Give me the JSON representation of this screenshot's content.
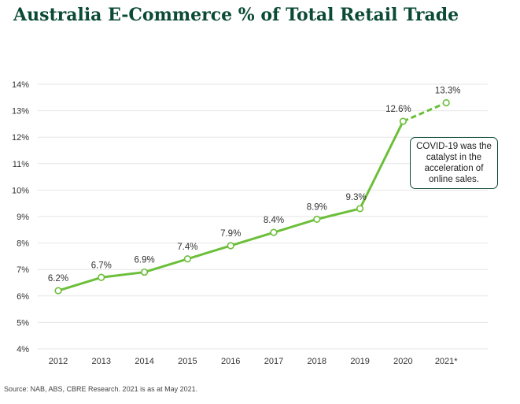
{
  "title": "Australia E-Commerce % of Total Retail Trade",
  "source": "Source: NAB, ABS, CBRE Research. 2021 is as at May 2021.",
  "callout": {
    "lines": [
      "COVID-19 was the",
      "catalyst in the",
      "acceleration of",
      "online sales."
    ]
  },
  "colors": {
    "line": "#6cbf3a",
    "title": "#0b4a36",
    "grid": "#e6e6e6"
  },
  "chart_data": {
    "type": "line",
    "title": "Australia E-Commerce % of Total Retail Trade",
    "xlabel": "",
    "ylabel": "",
    "categories": [
      "2012",
      "2013",
      "2014",
      "2015",
      "2016",
      "2017",
      "2018",
      "2019",
      "2020",
      "2021*"
    ],
    "values": [
      6.2,
      6.7,
      6.9,
      7.4,
      7.9,
      8.4,
      8.9,
      9.3,
      12.6,
      13.3
    ],
    "labels": [
      "6.2%",
      "6.7%",
      "6.9%",
      "7.4%",
      "7.9%",
      "8.4%",
      "8.9%",
      "9.3%",
      "12.6%",
      "13.3%"
    ],
    "dashed_from_index": 8,
    "ylim": [
      4,
      14
    ],
    "yticks": [
      4,
      5,
      6,
      7,
      8,
      9,
      10,
      11,
      12,
      13,
      14
    ],
    "ytick_labels": [
      "4%",
      "5%",
      "6%",
      "7%",
      "8%",
      "9%",
      "10%",
      "11%",
      "12%",
      "13%",
      "14%"
    ],
    "grid": true,
    "legend": "none"
  }
}
